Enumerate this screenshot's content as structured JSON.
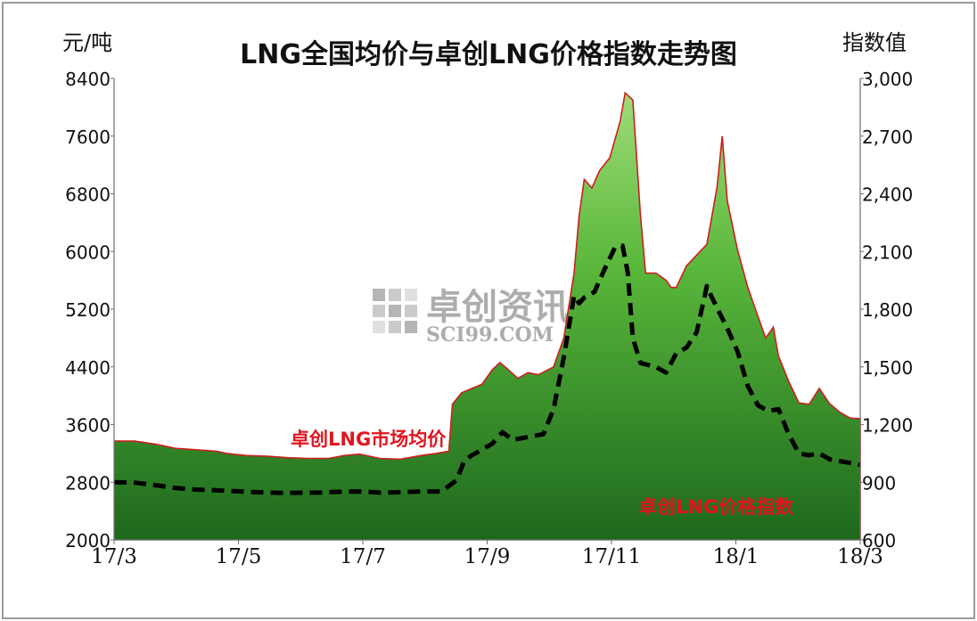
{
  "header": {
    "title": "LNG全国均价与卓创LNG价格指数走势图",
    "left_unit": "元/吨",
    "right_unit": "指数值"
  },
  "watermark": {
    "cn": "卓创资讯",
    "en": "SCI99.COM"
  },
  "colors": {
    "area_top": "#8fd36a",
    "area_bottom": "#1f6b1f",
    "area_outline": "#cc1f1f",
    "index_line": "#000000",
    "label": "#e0141e",
    "axis": "#6e6e6e"
  },
  "chart_data": {
    "type": "area",
    "x_ticks": [
      "17/3",
      "17/5",
      "17/7",
      "17/9",
      "17/11",
      "18/1",
      "18/3"
    ],
    "y_left_ticks": [
      "2000",
      "2800",
      "3600",
      "4400",
      "5200",
      "6000",
      "6800",
      "7600",
      "8400"
    ],
    "y_right_ticks": [
      "600",
      "900",
      "1,200",
      "1,500",
      "1,800",
      "2,100",
      "2,400",
      "2,700",
      "3,000"
    ],
    "ylim_left": [
      2000,
      8400
    ],
    "ylim_right": [
      600,
      3000
    ],
    "x_range": [
      0,
      12
    ],
    "series": [
      {
        "name": "卓创LNG市场均价",
        "axis": "left",
        "style": "area",
        "points": [
          [
            0.0,
            3370
          ],
          [
            0.4,
            3370
          ],
          [
            0.8,
            3330
          ],
          [
            1.2,
            3270
          ],
          [
            1.6,
            3250
          ],
          [
            2.0,
            3230
          ],
          [
            2.2,
            3200
          ],
          [
            2.6,
            3170
          ],
          [
            3.0,
            3160
          ],
          [
            3.4,
            3140
          ],
          [
            3.8,
            3130
          ],
          [
            4.2,
            3130
          ],
          [
            4.5,
            3170
          ],
          [
            4.8,
            3190
          ],
          [
            5.2,
            3130
          ],
          [
            5.6,
            3120
          ],
          [
            6.0,
            3170
          ],
          [
            6.3,
            3200
          ],
          [
            6.55,
            3230
          ],
          [
            6.62,
            3880
          ],
          [
            6.8,
            4040
          ],
          [
            7.0,
            4100
          ],
          [
            7.2,
            4160
          ],
          [
            7.4,
            4360
          ],
          [
            7.55,
            4460
          ],
          [
            7.7,
            4370
          ],
          [
            7.9,
            4240
          ],
          [
            8.1,
            4320
          ],
          [
            8.3,
            4290
          ],
          [
            8.6,
            4400
          ],
          [
            8.8,
            4800
          ],
          [
            9.0,
            5700
          ],
          [
            9.1,
            6500
          ],
          [
            9.2,
            7000
          ],
          [
            9.35,
            6880
          ],
          [
            9.5,
            7120
          ],
          [
            9.7,
            7300
          ],
          [
            9.9,
            7800
          ],
          [
            10.0,
            8200
          ],
          [
            10.15,
            8100
          ],
          [
            10.3,
            6500
          ],
          [
            10.4,
            5700
          ],
          [
            10.6,
            5700
          ],
          [
            10.8,
            5600
          ],
          [
            10.9,
            5500
          ],
          [
            11.0,
            5500
          ],
          [
            11.2,
            5800
          ],
          [
            11.4,
            5950
          ],
          [
            11.6,
            6100
          ],
          [
            11.8,
            6900
          ],
          [
            11.9,
            7600
          ],
          [
            12.0,
            6700
          ]
        ]
      },
      {
        "name": "卓创LNG价格指数",
        "axis": "right",
        "style": "dashed",
        "points": [
          [
            0.0,
            900
          ],
          [
            0.4,
            898
          ],
          [
            0.8,
            885
          ],
          [
            1.2,
            870
          ],
          [
            1.6,
            862
          ],
          [
            2.0,
            858
          ],
          [
            2.4,
            853
          ],
          [
            2.8,
            848
          ],
          [
            3.2,
            845
          ],
          [
            3.6,
            845
          ],
          [
            4.0,
            846
          ],
          [
            4.4,
            850
          ],
          [
            4.8,
            852
          ],
          [
            5.2,
            846
          ],
          [
            5.6,
            848
          ],
          [
            6.0,
            852
          ],
          [
            6.4,
            852
          ],
          [
            6.5,
            870
          ],
          [
            6.7,
            910
          ],
          [
            6.85,
            1010
          ],
          [
            7.0,
            1040
          ],
          [
            7.2,
            1070
          ],
          [
            7.4,
            1100
          ],
          [
            7.6,
            1160
          ],
          [
            7.8,
            1120
          ],
          [
            8.0,
            1130
          ],
          [
            8.2,
            1140
          ],
          [
            8.4,
            1150
          ],
          [
            8.6,
            1280
          ],
          [
            8.8,
            1550
          ],
          [
            9.0,
            1870
          ],
          [
            9.1,
            1830
          ],
          [
            9.2,
            1860
          ],
          [
            9.4,
            1890
          ],
          [
            9.6,
            2010
          ],
          [
            9.8,
            2120
          ],
          [
            9.95,
            2130
          ],
          [
            10.05,
            1990
          ],
          [
            10.15,
            1650
          ],
          [
            10.3,
            1520
          ],
          [
            10.6,
            1500
          ],
          [
            10.8,
            1470
          ],
          [
            11.0,
            1570
          ],
          [
            11.2,
            1600
          ],
          [
            11.4,
            1680
          ],
          [
            11.6,
            1920
          ],
          [
            11.7,
            1860
          ],
          [
            12.0,
            1700
          ]
        ]
      }
    ],
    "extra_area_tail": [
      [
        12.0,
        6700
      ],
      [
        12.2,
        6020
      ],
      [
        12.4,
        5500
      ],
      [
        12.6,
        5100
      ],
      [
        12.75,
        4800
      ],
      [
        12.9,
        4950
      ],
      [
        13.0,
        4550
      ],
      [
        13.2,
        4200
      ],
      [
        13.4,
        3900
      ],
      [
        13.6,
        3880
      ],
      [
        13.8,
        4100
      ],
      [
        14.0,
        3890
      ],
      [
        14.2,
        3770
      ],
      [
        14.4,
        3690
      ],
      [
        14.6,
        3680
      ]
    ],
    "extra_index_tail": [
      [
        12.0,
        1700
      ],
      [
        12.2,
        1580
      ],
      [
        12.4,
        1400
      ],
      [
        12.6,
        1300
      ],
      [
        12.8,
        1270
      ],
      [
        13.0,
        1280
      ],
      [
        13.2,
        1150
      ],
      [
        13.4,
        1050
      ],
      [
        13.6,
        1040
      ],
      [
        13.8,
        1050
      ],
      [
        14.0,
        1020
      ],
      [
        14.2,
        1010
      ],
      [
        14.4,
        1000
      ],
      [
        14.6,
        990
      ]
    ]
  },
  "labels": {
    "area_series": "卓创LNG市场均价",
    "index_series": "卓创LNG价格指数"
  }
}
